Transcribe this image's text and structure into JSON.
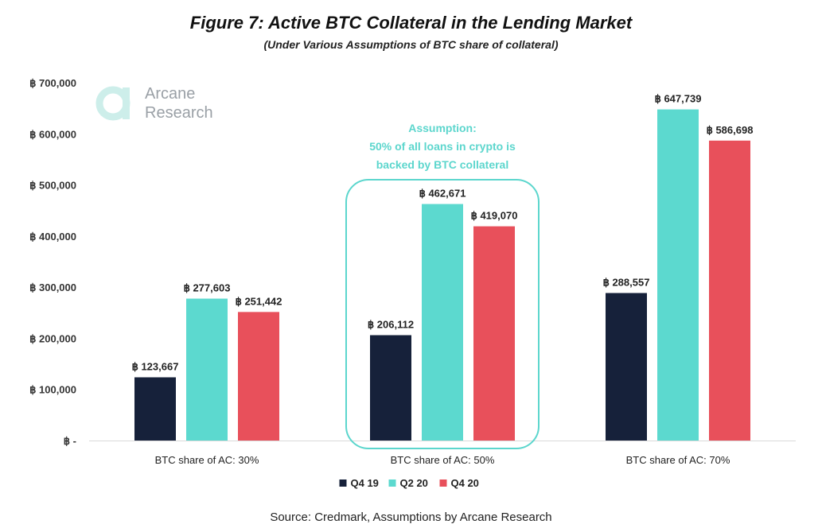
{
  "header": {
    "title": "Figure 7: Active BTC Collateral in the Lending Market",
    "subtitle": "(Under Various Assumptions of BTC share of collateral)"
  },
  "logo": {
    "line1": "Arcane",
    "line2": "Research",
    "color": "#cdeeea"
  },
  "source": "Source: Credmark, Assumptions by Arcane Research",
  "chart_data": {
    "type": "bar",
    "categories": [
      "BTC share of AC: 30%",
      "BTC share of AC: 50%",
      "BTC share of AC: 70%"
    ],
    "series": [
      {
        "name": "Q4 19",
        "color": "#16213a",
        "values": [
          123667,
          206112,
          288557
        ],
        "labels": [
          "฿ 123,667",
          "฿ 206,112",
          "฿ 288,557"
        ]
      },
      {
        "name": "Q2 20",
        "color": "#5cd9cf",
        "values": [
          277603,
          462671,
          647739
        ],
        "labels": [
          "฿ 277,603",
          "฿ 462,671",
          "฿ 647,739"
        ]
      },
      {
        "name": "Q4 20",
        "color": "#e8505b",
        "values": [
          251442,
          419070,
          586698
        ],
        "labels": [
          "฿ 251,442",
          "฿ 419,070",
          "฿ 586,698"
        ]
      }
    ],
    "ylim": [
      0,
      700000
    ],
    "yticks": [
      0,
      100000,
      200000,
      300000,
      400000,
      500000,
      600000,
      700000
    ],
    "ytick_labels": [
      "฿ -",
      "฿ 100,000",
      "฿ 200,000",
      "฿ 300,000",
      "฿ 400,000",
      "฿ 500,000",
      "฿ 600,000",
      "฿ 700,000"
    ],
    "grid": false,
    "legend_position": "bottom",
    "annotation": {
      "lines": [
        "Assumption:",
        "50% of all loans in crypto is",
        "backed by BTC collateral"
      ],
      "color": "#5cd6cd",
      "highlight_category": 1
    }
  }
}
